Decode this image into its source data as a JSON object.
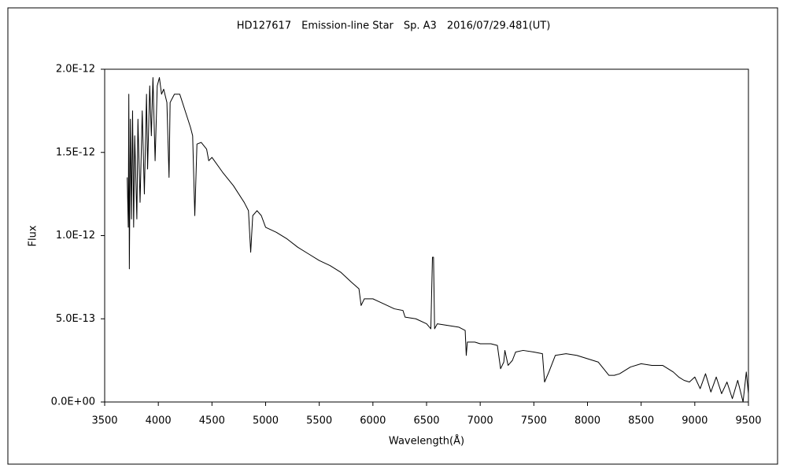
{
  "chart_data": {
    "type": "line",
    "title": "HD127617　Emission-line Star　Sp. A3　2016/07/29.481(UT)",
    "x_label": "Wavelength(Å)",
    "y_label": "Flux",
    "xlim": [
      3500,
      9500
    ],
    "xticks": [
      3500,
      4000,
      4500,
      5000,
      5500,
      6000,
      6500,
      7000,
      7500,
      8000,
      8500,
      9000,
      9500
    ],
    "ylim": [
      0,
      2e-12
    ],
    "yticks": [
      {
        "value": 0,
        "label": "0.0E+00"
      },
      {
        "value": 5e-13,
        "label": "5.0E-13"
      },
      {
        "value": 1e-12,
        "label": "1.0E-12"
      },
      {
        "value": 1.5e-12,
        "label": "1.5E-12"
      },
      {
        "value": 2e-12,
        "label": "2.0E-12"
      }
    ],
    "grid": false,
    "series": [
      {
        "color": "#000000",
        "x": [
          3710,
          3720,
          3725,
          3730,
          3740,
          3750,
          3760,
          3770,
          3780,
          3800,
          3810,
          3830,
          3850,
          3870,
          3890,
          3900,
          3920,
          3935,
          3950,
          3970,
          3990,
          4010,
          4030,
          4050,
          4080,
          4100,
          4110,
          4150,
          4200,
          4250,
          4300,
          4320,
          4340,
          4360,
          4400,
          4450,
          4470,
          4500,
          4600,
          4700,
          4800,
          4840,
          4861,
          4880,
          4920,
          4960,
          5000,
          5100,
          5200,
          5300,
          5400,
          5500,
          5600,
          5700,
          5800,
          5870,
          5890,
          5920,
          6000,
          6100,
          6200,
          6280,
          6300,
          6400,
          6500,
          6540,
          6555,
          6565,
          6575,
          6600,
          6700,
          6800,
          6860,
          6870,
          6880,
          6950,
          7000,
          7100,
          7160,
          7190,
          7220,
          7230,
          7260,
          7300,
          7330,
          7400,
          7500,
          7580,
          7600,
          7640,
          7700,
          7800,
          7900,
          8000,
          8100,
          8150,
          8200,
          8250,
          8300,
          8400,
          8500,
          8600,
          8700,
          8750,
          8800,
          8850,
          8900,
          8950,
          9000,
          9050,
          9100,
          9150,
          9200,
          9250,
          9300,
          9350,
          9400,
          9450,
          9480,
          9500
        ],
        "values": [
          1.35e-12,
          1.05e-12,
          1.85e-12,
          8e-13,
          1.7e-12,
          1.1e-12,
          1.75e-12,
          1.05e-12,
          1.6e-12,
          1.1e-12,
          1.7e-12,
          1.2e-12,
          1.75e-12,
          1.25e-12,
          1.85e-12,
          1.4e-12,
          1.9e-12,
          1.6e-12,
          1.95e-12,
          1.45e-12,
          1.9e-12,
          1.95e-12,
          1.85e-12,
          1.88e-12,
          1.8e-12,
          1.35e-12,
          1.8e-12,
          1.85e-12,
          1.85e-12,
          1.75e-12,
          1.65e-12,
          1.6e-12,
          1.12e-12,
          1.55e-12,
          1.56e-12,
          1.52e-12,
          1.45e-12,
          1.47e-12,
          1.38e-12,
          1.3e-12,
          1.2e-12,
          1.15e-12,
          9e-13,
          1.12e-12,
          1.15e-12,
          1.12e-12,
          1.05e-12,
          1.02e-12,
          9.8e-13,
          9.3e-13,
          8.9e-13,
          8.5e-13,
          8.2e-13,
          7.8e-13,
          7.2e-13,
          6.8e-13,
          5.8e-13,
          6.2e-13,
          6.2e-13,
          5.9e-13,
          5.6e-13,
          5.5e-13,
          5.1e-13,
          5e-13,
          4.7e-13,
          4.4e-13,
          8.7e-13,
          8.7e-13,
          4.4e-13,
          4.7e-13,
          4.6e-13,
          4.5e-13,
          4.3e-13,
          2.8e-13,
          3.6e-13,
          3.6e-13,
          3.5e-13,
          3.5e-13,
          3.4e-13,
          2e-13,
          2.4e-13,
          3.1e-13,
          2.2e-13,
          2.5e-13,
          3e-13,
          3.1e-13,
          3e-13,
          2.9e-13,
          1.2e-13,
          1.8e-13,
          2.8e-13,
          2.9e-13,
          2.8e-13,
          2.6e-13,
          2.4e-13,
          2e-13,
          1.6e-13,
          1.6e-13,
          1.7e-13,
          2.1e-13,
          2.3e-13,
          2.2e-13,
          2.2e-13,
          2e-13,
          1.8e-13,
          1.5e-13,
          1.3e-13,
          1.2e-13,
          1.5e-13,
          8e-14,
          1.7e-13,
          6e-14,
          1.5e-13,
          5e-14,
          1.2e-13,
          2e-14,
          1.3e-13,
          0,
          1.8e-13,
          5e-14
        ]
      }
    ]
  }
}
